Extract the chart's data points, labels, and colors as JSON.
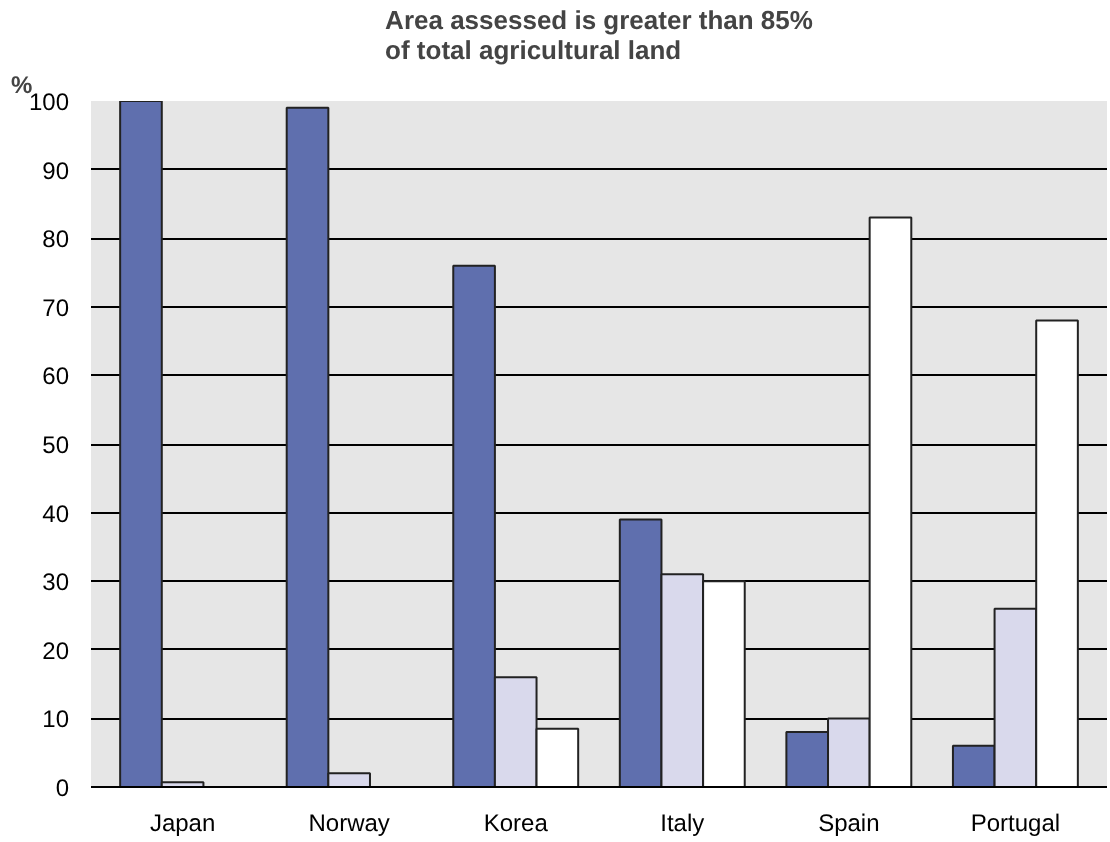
{
  "chart_data": {
    "type": "bar",
    "title": "Area assessed is greater than 85%\nof total agricultural land",
    "ylabel": "%",
    "categories": [
      "Japan",
      "Norway",
      "Korea",
      "Italy",
      "Spain",
      "Portugal"
    ],
    "series": [
      {
        "color": "#5f6fae",
        "values": [
          100,
          99,
          76,
          39,
          8,
          6
        ]
      },
      {
        "color": "#d9d9ec",
        "values": [
          0.7,
          2,
          16,
          31,
          10,
          26
        ]
      },
      {
        "color": "#ffffff",
        "values": [
          null,
          null,
          8.5,
          30,
          83,
          68
        ]
      }
    ],
    "ylim": [
      0,
      100
    ],
    "yticks": [
      0,
      10,
      20,
      30,
      40,
      50,
      60,
      70,
      80,
      90,
      100
    ],
    "grid": "y"
  }
}
